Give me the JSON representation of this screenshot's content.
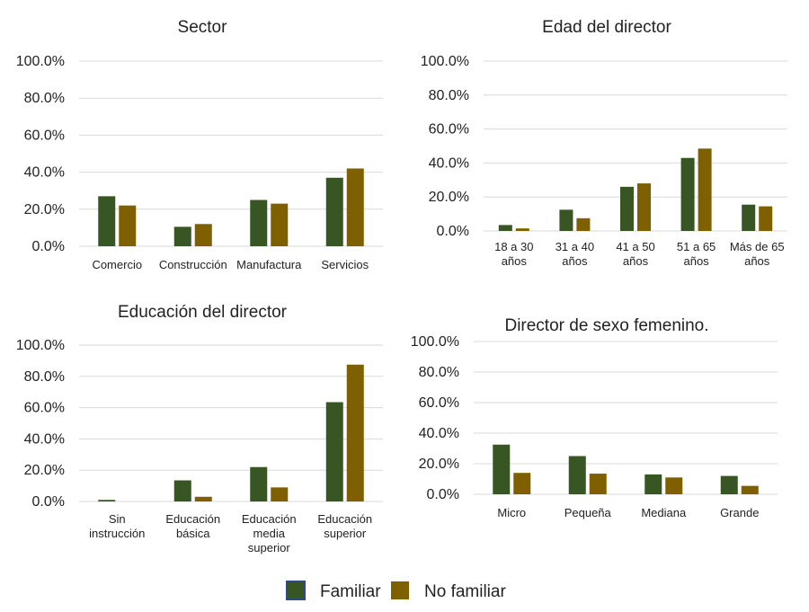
{
  "colors": {
    "familiar": "#375623",
    "no_familiar": "#7F6000",
    "familiar_border": "#2E4A8C"
  },
  "legend": {
    "familiar": "Familiar",
    "no_familiar": "No familiar"
  },
  "chart_data": [
    {
      "type": "bar",
      "title": "Sector",
      "categories": [
        [
          "Comercio"
        ],
        [
          "Construcción"
        ],
        [
          "Manufactura"
        ],
        [
          "Servicios"
        ]
      ],
      "series": [
        {
          "name": "Familiar",
          "values": [
            27.0,
            10.5,
            25.0,
            37.0
          ]
        },
        {
          "name": "No familiar",
          "values": [
            22.0,
            12.0,
            23.0,
            42.0
          ]
        }
      ],
      "ylim": [
        0,
        100
      ],
      "yticks": [
        "0.0%",
        "20.0%",
        "40.0%",
        "60.0%",
        "80.0%",
        "100.0%"
      ],
      "grid": true
    },
    {
      "type": "bar",
      "title": "Edad del director",
      "categories": [
        [
          "18 a 30",
          "años"
        ],
        [
          "31 a 40",
          "años"
        ],
        [
          "41 a 50",
          "años"
        ],
        [
          "51 a 65",
          "años"
        ],
        [
          "Más de 65",
          "años"
        ]
      ],
      "series": [
        {
          "name": "Familiar",
          "values": [
            3.5,
            12.5,
            26.0,
            43.0,
            15.5
          ]
        },
        {
          "name": "No familiar",
          "values": [
            1.5,
            7.5,
            28.0,
            48.5,
            14.5
          ]
        }
      ],
      "ylim": [
        0,
        100
      ],
      "yticks": [
        "0.0%",
        "20.0%",
        "40.0%",
        "60.0%",
        "80.0%",
        "100.0%"
      ],
      "grid": true
    },
    {
      "type": "bar",
      "title": "Educación del director",
      "categories": [
        [
          "Sin",
          "instrucción"
        ],
        [
          "Educación",
          "básica"
        ],
        [
          "Educación",
          "media",
          "superior"
        ],
        [
          "Educación",
          "superior"
        ]
      ],
      "series": [
        {
          "name": "Familiar",
          "values": [
            1.0,
            13.5,
            22.0,
            63.5
          ]
        },
        {
          "name": "No familiar",
          "values": [
            0.0,
            3.0,
            9.0,
            87.5
          ]
        }
      ],
      "ylim": [
        0,
        100
      ],
      "yticks": [
        "0.0%",
        "20.0%",
        "40.0%",
        "60.0%",
        "80.0%",
        "100.0%"
      ],
      "grid": true
    },
    {
      "type": "bar",
      "title": "Director de sexo femenino.",
      "categories": [
        [
          "Micro"
        ],
        [
          "Pequeña"
        ],
        [
          "Mediana"
        ],
        [
          "Grande"
        ]
      ],
      "series": [
        {
          "name": "Familiar",
          "values": [
            32.5,
            25.0,
            13.0,
            12.0
          ]
        },
        {
          "name": "No familiar",
          "values": [
            14.0,
            13.5,
            11.0,
            5.5
          ]
        }
      ],
      "ylim": [
        0,
        100
      ],
      "yticks": [
        "0.0%",
        "20.0%",
        "40.0%",
        "60.0%",
        "80.0%",
        "100.0%"
      ],
      "grid": true
    }
  ]
}
